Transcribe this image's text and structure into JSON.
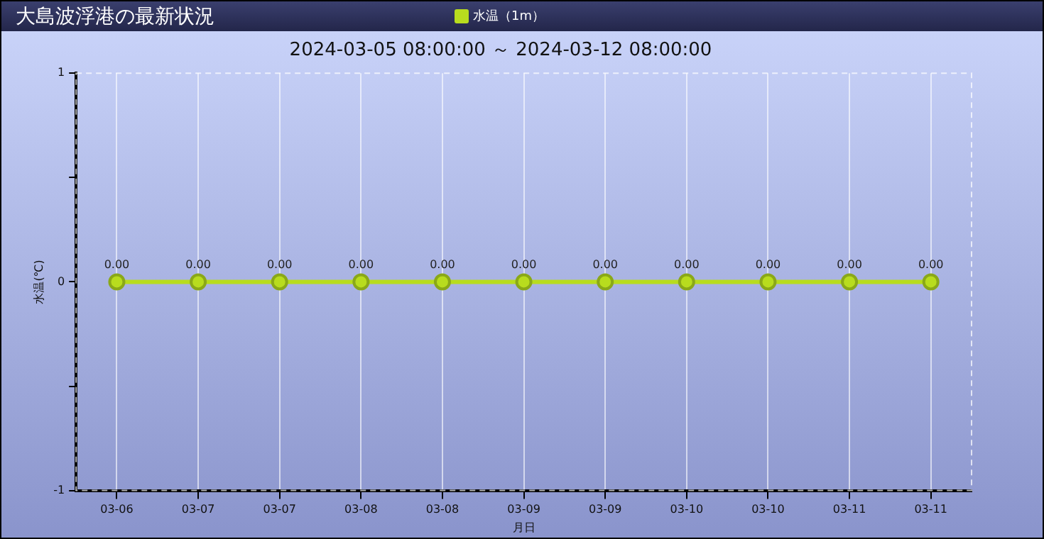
{
  "chart_data": {
    "type": "line",
    "title": "大島波浮港の最新状況",
    "subtitle": "2024-03-05 08:00:00 ～ 2024-03-12 08:00:00",
    "xlabel": "月日",
    "ylabel": "水温(℃)",
    "categories": [
      "03-06",
      "03-07",
      "03-07",
      "03-08",
      "03-08",
      "03-09",
      "03-09",
      "03-10",
      "03-10",
      "03-11",
      "03-11"
    ],
    "series": [
      {
        "name": "水温（1m）",
        "color": "#b8dc1e",
        "values": [
          0,
          0,
          0,
          0,
          0,
          0,
          0,
          0,
          0,
          0,
          0
        ],
        "value_labels": [
          "0.00",
          "0.00",
          "0.00",
          "0.00",
          "0.00",
          "0.00",
          "0.00",
          "0.00",
          "0.00",
          "0.00",
          "0.00"
        ]
      }
    ],
    "ylim": [
      -1,
      1
    ],
    "yticks": [
      -1,
      {
        "value": -0.5,
        "label": null
      },
      0,
      {
        "value": 0.5,
        "label": null
      },
      1
    ],
    "grid": "x",
    "legend": "top",
    "marker": "circle",
    "line_style": "solid"
  }
}
